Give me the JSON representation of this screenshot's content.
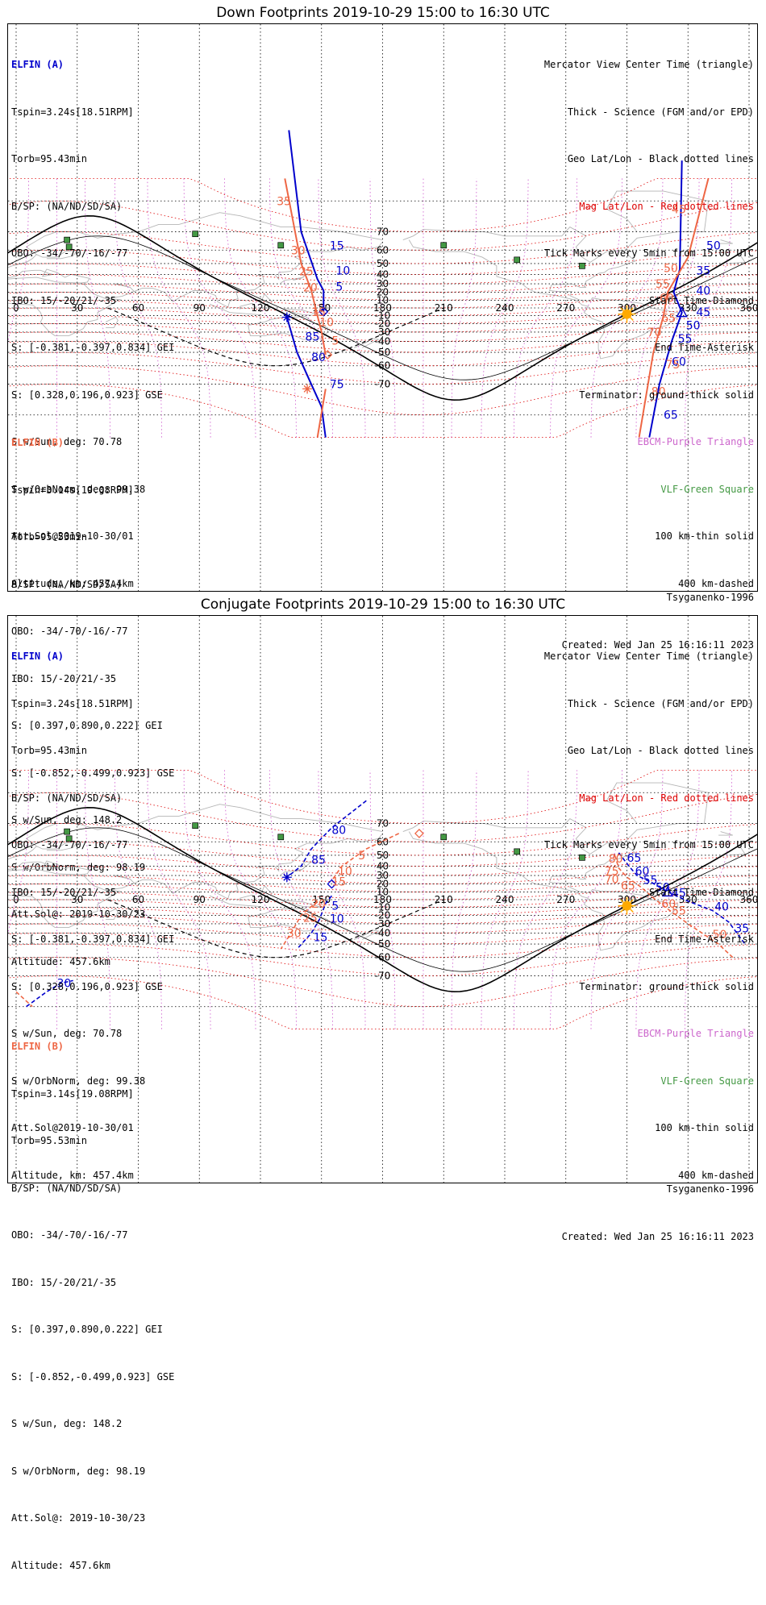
{
  "panels": [
    {
      "title": "Down Footprints 2019-10-29 15:00 to 16:30 UTC",
      "elfin_a": {
        "header": "ELFIN (A)",
        "lines": [
          "Tspin=3.24s[18.51RPM]",
          "Torb=95.43min",
          "B/SP: (NA/ND/SD/SA)",
          "OBO: -34/-70/-16/-77",
          "IBO: 15/-20/21/-35",
          "S: [-0.381,-0.397,0.834] GEI",
          "S: [0.328,0.196,0.923] GSE",
          "S w/Sun, deg: 70.78",
          "S w/OrbNorm, deg: 99.38",
          "Att.Sol@2019-10-30/01",
          "Altitude, km: 457.4km"
        ]
      },
      "elfin_b": {
        "header": "ELFIN (B)",
        "lines": [
          "Tspin=3.14s[19.08RPM]",
          "Torb=95.53min",
          "B/SP: (NA/ND/SD/SA)",
          "OBO: -34/-70/-16/-77",
          "IBO: 15/-20/21/-35",
          "S: [0.397,0.890,0.222] GEI",
          "S: [-0.852,-0.499,0.923] GSE",
          "S w/Sun, deg: 148.2",
          "S w/OrbNorm, deg: 98.19",
          "Att.Sol@: 2019-10-30/23",
          "Altitude: 457.6km"
        ]
      },
      "model": "Tsyganenko-1996",
      "created": "Created: Wed Jan 25 16:16:11 2023",
      "track_labels_a": [
        {
          "t": "15",
          "lon": 154,
          "lat": 63
        },
        {
          "t": "10",
          "lon": 157,
          "lat": 44
        },
        {
          "t": "5",
          "lon": 157,
          "lat": 27
        },
        {
          "t": "85",
          "lon": 142,
          "lat": -35
        },
        {
          "t": "80",
          "lon": 145,
          "lat": -54
        },
        {
          "t": "75",
          "lon": 154,
          "lat": -70
        },
        {
          "t": "50",
          "lon": 339,
          "lat": 63
        },
        {
          "t": "35",
          "lon": 334,
          "lat": 44
        },
        {
          "t": "40",
          "lon": 334,
          "lat": 22
        },
        {
          "t": "45",
          "lon": 334,
          "lat": -5
        },
        {
          "t": "50",
          "lon": 329,
          "lat": -22
        },
        {
          "t": "55",
          "lon": 325,
          "lat": -37
        },
        {
          "t": "60",
          "lon": 322,
          "lat": -57
        },
        {
          "t": "65",
          "lon": 318,
          "lat": -80
        }
      ],
      "track_labels_b": [
        {
          "t": "35",
          "lon": 128,
          "lat": 80
        },
        {
          "t": "30",
          "lon": 135,
          "lat": 60
        },
        {
          "t": "25",
          "lon": 139,
          "lat": 43
        },
        {
          "t": "20",
          "lon": 141,
          "lat": 26
        },
        {
          "t": "15",
          "lon": 145,
          "lat": -5
        },
        {
          "t": "10",
          "lon": 149,
          "lat": -18
        },
        {
          "t": "5",
          "lon": 155,
          "lat": -39
        },
        {
          "t": "65",
          "lon": 317,
          "lat": -13
        },
        {
          "t": "70",
          "lon": 310,
          "lat": -30
        },
        {
          "t": "75",
          "lon": 319,
          "lat": -59
        },
        {
          "t": "80",
          "lon": 312,
          "lat": -73
        },
        {
          "t": "55",
          "lon": 314,
          "lat": 30
        },
        {
          "t": "60",
          "lon": 316,
          "lat": 13
        },
        {
          "t": "50",
          "lon": 318,
          "lat": 46
        },
        {
          "t": "45",
          "lon": 322,
          "lat": 78
        }
      ]
    },
    {
      "title": "Conjugate Footprints 2019-10-29 15:00 to 16:30 UTC",
      "elfin_a": {
        "header": "ELFIN (A)",
        "lines": [
          "Tspin=3.24s[18.51RPM]",
          "Torb=95.43min",
          "B/SP: (NA/ND/SD/SA)",
          "OBO: -34/-70/-16/-77",
          "IBO: 15/-20/21/-35",
          "S: [-0.381,-0.397,0.834] GEI",
          "S: [0.328,0.196,0.923] GSE",
          "S w/Sun, deg: 70.78",
          "S w/OrbNorm, deg: 99.38",
          "Att.Sol@2019-10-30/01",
          "Altitude, km: 457.4km"
        ]
      },
      "elfin_b": {
        "header": "ELFIN (B)",
        "lines": [
          "Tspin=3.14s[19.08RPM]",
          "Torb=95.53min",
          "B/SP: (NA/ND/SD/SA)",
          "OBO: -34/-70/-16/-77",
          "IBO: 15/-20/21/-35",
          "S: [0.397,0.890,0.222] GEI",
          "S: [-0.852,-0.499,0.923] GSE",
          "S w/Sun, deg: 148.2",
          "S w/OrbNorm, deg: 98.19",
          "Att.Sol@: 2019-10-30/23",
          "Altitude: 457.6km"
        ]
      },
      "model": "Tsyganenko-1996",
      "created": "Created: Wed Jan 25 16:16:11 2023",
      "track_labels_a": [
        {
          "t": "80",
          "lon": 155,
          "lat": 67
        },
        {
          "t": "85",
          "lon": 145,
          "lat": 46
        },
        {
          "t": "5",
          "lon": 155,
          "lat": -8
        },
        {
          "t": "10",
          "lon": 154,
          "lat": -24
        },
        {
          "t": "15",
          "lon": 146,
          "lat": -44
        },
        {
          "t": "65",
          "lon": 300,
          "lat": 48
        },
        {
          "t": "60",
          "lon": 304,
          "lat": 35
        },
        {
          "t": "55",
          "lon": 308,
          "lat": 25
        },
        {
          "t": "50",
          "lon": 314,
          "lat": 16
        },
        {
          "t": "45",
          "lon": 322,
          "lat": 9
        },
        {
          "t": "40",
          "lon": 343,
          "lat": -9
        },
        {
          "t": "35",
          "lon": 353,
          "lat": -35
        },
        {
          "t": "30",
          "lon": 20,
          "lat": -73
        }
      ],
      "track_labels_b": [
        {
          "t": "5",
          "lon": 168,
          "lat": 50
        },
        {
          "t": "10",
          "lon": 158,
          "lat": 35
        },
        {
          "t": "15",
          "lon": 155,
          "lat": 23
        },
        {
          "t": "20",
          "lon": 145,
          "lat": -5
        },
        {
          "t": "25",
          "lon": 141,
          "lat": -23
        },
        {
          "t": "30",
          "lon": 133,
          "lat": -40
        },
        {
          "t": "80",
          "lon": 291,
          "lat": 47
        },
        {
          "t": "75",
          "lon": 289,
          "lat": 35
        },
        {
          "t": "70",
          "lon": 289,
          "lat": 26
        },
        {
          "t": "65",
          "lon": 297,
          "lat": 18
        },
        {
          "t": "60",
          "lon": 317,
          "lat": -5
        },
        {
          "t": "55",
          "lon": 322,
          "lat": -14
        },
        {
          "t": "50",
          "lon": 342,
          "lat": -41
        }
      ]
    }
  ],
  "legend": {
    "mercator": "Mercator View Center Time (triangle)",
    "thick": "Thick - Science (FGM and/or EPD)",
    "geo": "Geo Lat/Lon - Black dotted lines",
    "mag": "Mag Lat/Lon - Red dotted lines",
    "ticks": "Tick Marks every 5min from 15:00 UTC",
    "start": "Start Time-Diamond",
    "end": "End Time-Asterisk",
    "terminator": "Terminator: ground-thick solid",
    "ebcm": "EBCM-Purple Triangle",
    "vlf": "VLF-Green Square",
    "km100": "100 km-thin solid",
    "km400": "400 km-dashed"
  },
  "axis": {
    "lon_ticks": [
      "0",
      "30",
      "60",
      "90",
      "120",
      "150",
      "180",
      "210",
      "240",
      "270",
      "300",
      "330",
      "360"
    ],
    "lat_ticks": [
      "70",
      "60",
      "50",
      "40",
      "30",
      "20",
      "10",
      "-10",
      "-20",
      "-30",
      "-40",
      "-50",
      "-60",
      "-70"
    ]
  },
  "vlf_stations": [
    {
      "lon": 88,
      "lat": 69
    },
    {
      "lon": 25,
      "lat": 66
    },
    {
      "lon": 26,
      "lat": 62
    },
    {
      "lon": 130,
      "lat": 63
    },
    {
      "lon": 210,
      "lat": 63
    },
    {
      "lon": 246,
      "lat": 53
    },
    {
      "lon": 278,
      "lat": 48
    }
  ],
  "colors": {
    "elfin_a": "#0000cc",
    "elfin_b": "#ee6644",
    "geo_grid": "#000000",
    "mag_grid": "#dd0000",
    "ebcm": "#cc66cc",
    "vlf": "#449944",
    "sun": "#ffaa00"
  }
}
